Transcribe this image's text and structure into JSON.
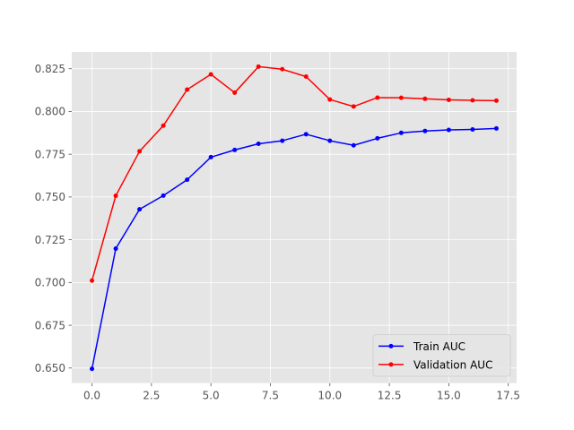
{
  "chart_data": {
    "type": "line",
    "title": "",
    "xlabel": "",
    "ylabel": "",
    "xlim": [
      -0.85,
      17.85
    ],
    "ylim": [
      0.6412,
      0.8348
    ],
    "xticks": [
      0.0,
      2.5,
      5.0,
      7.5,
      10.0,
      12.5,
      15.0,
      17.5
    ],
    "xtick_labels": [
      "0.0",
      "2.5",
      "5.0",
      "7.5",
      "10.0",
      "12.5",
      "15.0",
      "17.5"
    ],
    "yticks": [
      0.65,
      0.675,
      0.7,
      0.725,
      0.75,
      0.775,
      0.8,
      0.825
    ],
    "ytick_labels": [
      "0.650",
      "0.675",
      "0.700",
      "0.725",
      "0.750",
      "0.775",
      "0.800",
      "0.825"
    ],
    "grid": true,
    "style": "ggplot",
    "legend_position": "lower-right",
    "x": [
      0,
      1,
      2,
      3,
      4,
      5,
      6,
      7,
      8,
      9,
      10,
      11,
      12,
      13,
      14,
      15,
      16,
      17
    ],
    "series": [
      {
        "name": "Train AUC",
        "color": "#0000ff",
        "values": [
          0.6495,
          0.7198,
          0.7428,
          0.7508,
          0.7601,
          0.7733,
          0.7775,
          0.7811,
          0.7829,
          0.7867,
          0.7829,
          0.7802,
          0.7843,
          0.7875,
          0.7886,
          0.7892,
          0.7895,
          0.7901
        ]
      },
      {
        "name": "Validation AUC",
        "color": "#ff0000",
        "values": [
          0.7011,
          0.7507,
          0.7767,
          0.7917,
          0.8128,
          0.8217,
          0.811,
          0.8262,
          0.8247,
          0.8204,
          0.807,
          0.8029,
          0.8081,
          0.808,
          0.8074,
          0.8068,
          0.8065,
          0.8063
        ]
      }
    ]
  }
}
